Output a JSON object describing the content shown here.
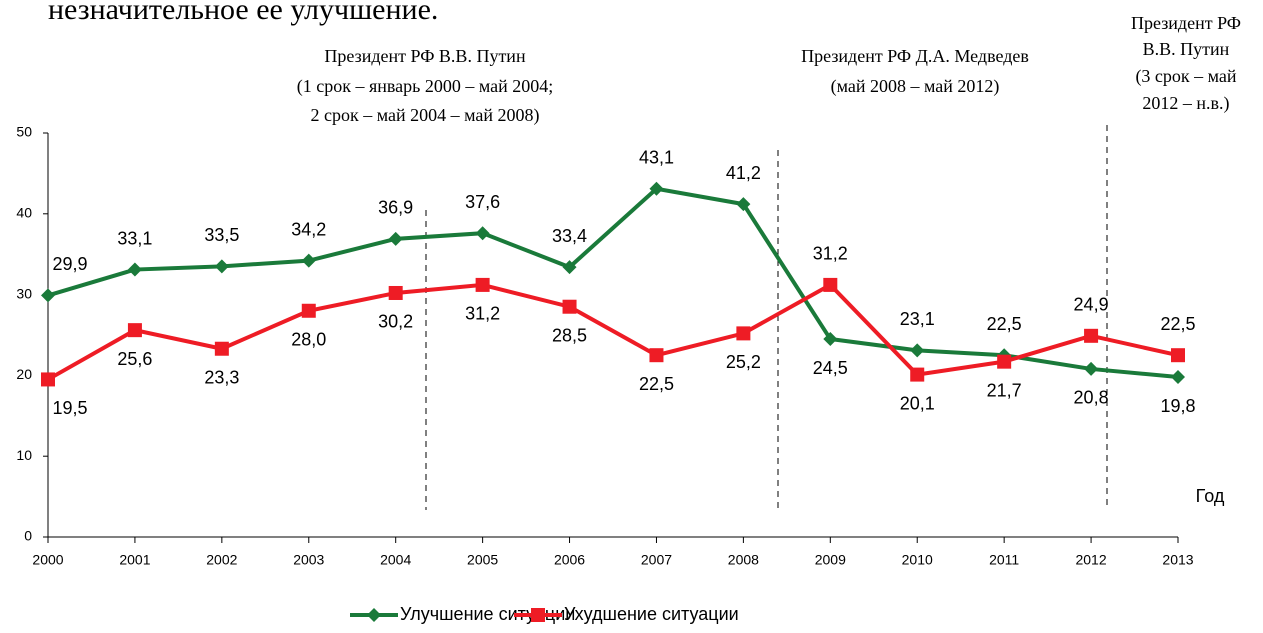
{
  "chart_data": {
    "type": "line",
    "heading": "незначительное ее улучшение.",
    "x": [
      2000,
      2001,
      2002,
      2003,
      2004,
      2005,
      2006,
      2007,
      2008,
      2009,
      2010,
      2011,
      2012,
      2013
    ],
    "xlim": [
      2000,
      2013
    ],
    "xticks": [
      2000,
      2001,
      2002,
      2003,
      2004,
      2005,
      2006,
      2007,
      2008,
      2009,
      2010,
      2011,
      2012,
      2013
    ],
    "xlabel": "Год",
    "ylim": [
      0,
      50
    ],
    "yticks": [
      0,
      10,
      20,
      30,
      40,
      50
    ],
    "grid": false,
    "legend": "bottom",
    "series": [
      {
        "name": "Улучшение ситуации",
        "color": "#1a7a3a",
        "marker": "diamond",
        "values": [
          29.9,
          33.1,
          33.5,
          34.2,
          36.9,
          37.6,
          33.4,
          43.1,
          41.2,
          24.5,
          23.1,
          22.5,
          20.8,
          19.8
        ],
        "value_labels": [
          "29,9",
          "33,1",
          "33,5",
          "34,2",
          "36,9",
          "37,6",
          "33,4",
          "43,1",
          "41,2",
          "24,5",
          "23,1",
          "22,5",
          "20,8",
          "19,8"
        ]
      },
      {
        "name": "Ухудшение ситуации",
        "color": "#ee1c25",
        "marker": "square",
        "values": [
          19.5,
          25.6,
          23.3,
          28.0,
          30.2,
          31.2,
          28.5,
          22.5,
          25.2,
          31.2,
          20.1,
          21.7,
          24.9,
          22.5
        ],
        "value_labels": [
          "19,5",
          "25,6",
          "23,3",
          "28,0",
          "30,2",
          "31,2",
          "28,5",
          "22,5",
          "25,2",
          "31,2",
          "20,1",
          "21,7",
          "24,9",
          "22,5"
        ]
      }
    ],
    "annotations": [
      [
        "Президент РФ В.В. Путин",
        "(1 срок – январь 2000  – май 2004;",
        "2 срок –  май 2004 – май 2008)"
      ],
      [
        "Президент РФ Д.А. Медведев",
        "(май 2008  – май 2012)"
      ],
      [
        "Президент РФ",
        "В.В. Путин",
        "(3 срок – май",
        "2012  – н.в.)"
      ]
    ]
  }
}
